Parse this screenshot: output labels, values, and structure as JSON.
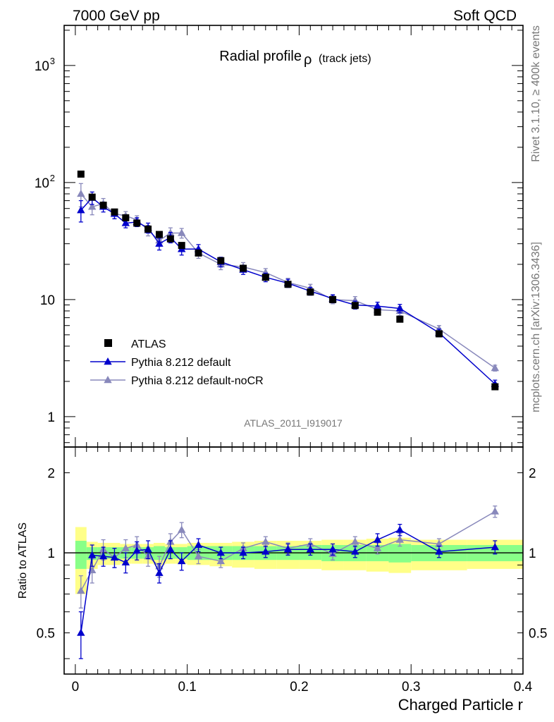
{
  "header": {
    "left": "7000 GeV pp",
    "right": "Soft QCD"
  },
  "side": {
    "rivet": "Rivet 3.1.10, ≥ 400k events",
    "mcplots": "mcplots.cern.ch [arXiv:1306.3436]"
  },
  "chart_data": [
    {
      "type": "scatter",
      "title_main": "Radial profile",
      "title_symbol": "ρ",
      "title_sub": "(track jets)",
      "analysis_label": "ATLAS_2011_I919017",
      "yscale": "log",
      "xlim": [
        -0.01,
        0.4
      ],
      "ylim": [
        0.55,
        2200
      ],
      "x_ticks": [
        "0",
        "0.1",
        "0.2",
        "0.3",
        "0.4"
      ],
      "y_ticks": [
        {
          "value": 1,
          "label": "1"
        },
        {
          "value": 10,
          "label": "10"
        },
        {
          "value": 100,
          "label": "10",
          "sup": "2"
        },
        {
          "value": 1000,
          "label": "10",
          "sup": "3"
        }
      ],
      "legend_position": "bottom-left",
      "colors": {
        "data": "#000000",
        "default": "#0000cc",
        "nocr": "#8888bb"
      },
      "series": [
        {
          "name": "ATLAS",
          "x": [
            0.005,
            0.015,
            0.025,
            0.035,
            0.045,
            0.055,
            0.065,
            0.075,
            0.085,
            0.095,
            0.11,
            0.13,
            0.15,
            0.17,
            0.19,
            0.21,
            0.23,
            0.25,
            0.27,
            0.29,
            0.325,
            0.375
          ],
          "y": [
            118,
            75,
            64,
            56,
            50,
            45,
            40,
            36,
            33,
            29,
            25,
            21.5,
            18.5,
            15.5,
            13.5,
            11.6,
            10.0,
            8.9,
            7.8,
            6.8,
            5.1,
            1.8
          ]
        },
        {
          "name": "Pythia 8.212 default",
          "x": [
            0.005,
            0.015,
            0.025,
            0.035,
            0.045,
            0.055,
            0.065,
            0.075,
            0.085,
            0.095,
            0.11,
            0.13,
            0.15,
            0.17,
            0.19,
            0.21,
            0.23,
            0.25,
            0.27,
            0.29,
            0.325,
            0.375
          ],
          "y": [
            58,
            74,
            62,
            54,
            45,
            46,
            41,
            30,
            34,
            27,
            27,
            21,
            18,
            15.5,
            13.8,
            11.8,
            10.2,
            9.0,
            8.8,
            8.4,
            5.2,
            1.9
          ],
          "err": [
            12,
            9,
            6,
            5,
            4,
            4,
            4,
            3.5,
            3.5,
            3,
            2.5,
            2,
            1.6,
            1.3,
            1.1,
            0.9,
            0.8,
            0.7,
            0.7,
            0.7,
            0.4,
            0.15
          ]
        },
        {
          "name": "Pythia 8.212 default-noCR",
          "x": [
            0.005,
            0.015,
            0.025,
            0.035,
            0.045,
            0.055,
            0.065,
            0.075,
            0.085,
            0.095,
            0.11,
            0.13,
            0.15,
            0.17,
            0.19,
            0.21,
            0.23,
            0.25,
            0.27,
            0.29,
            0.325,
            0.375
          ],
          "y": [
            80,
            62,
            66,
            54,
            52,
            48,
            39,
            32,
            37,
            37,
            25,
            20,
            19,
            17,
            14,
            12.5,
            10.0,
            9.8,
            8.2,
            8.0,
            5.6,
            2.6
          ],
          "err": [
            18,
            9,
            7,
            5,
            4.5,
            4,
            4,
            3.5,
            4,
            3.5,
            2.5,
            2,
            1.7,
            1.4,
            1.2,
            1.0,
            0.8,
            0.8,
            0.7,
            0.7,
            0.4,
            0.15
          ]
        }
      ]
    },
    {
      "type": "scatter",
      "ylabel": "Ratio to ATLAS",
      "xlabel": "Charged Particle r",
      "yscale": "log",
      "xlim": [
        -0.01,
        0.4
      ],
      "ylim": [
        0.35,
        2.5
      ],
      "x_ticks": [
        "0",
        "0.1",
        "0.2",
        "0.3",
        "0.4"
      ],
      "y_ticks": [
        {
          "value": 0.5,
          "label": "0.5"
        },
        {
          "value": 1,
          "label": "1"
        },
        {
          "value": 2,
          "label": "2"
        }
      ],
      "bands": {
        "edges": [
          0,
          0.01,
          0.02,
          0.03,
          0.04,
          0.05,
          0.06,
          0.07,
          0.08,
          0.09,
          0.1,
          0.12,
          0.14,
          0.16,
          0.18,
          0.2,
          0.22,
          0.24,
          0.26,
          0.28,
          0.3,
          0.35,
          0.4
        ],
        "yellow_lo": [
          0.7,
          0.87,
          0.9,
          0.9,
          0.91,
          0.91,
          0.91,
          0.9,
          0.91,
          0.91,
          0.9,
          0.89,
          0.88,
          0.87,
          0.87,
          0.87,
          0.86,
          0.86,
          0.85,
          0.84,
          0.86,
          0.87
        ],
        "yellow_hi": [
          1.25,
          1.1,
          1.09,
          1.09,
          1.08,
          1.08,
          1.08,
          1.09,
          1.08,
          1.08,
          1.09,
          1.09,
          1.1,
          1.11,
          1.11,
          1.11,
          1.12,
          1.12,
          1.13,
          1.14,
          1.12,
          1.12
        ],
        "green_lo": [
          0.87,
          0.94,
          0.95,
          0.95,
          0.95,
          0.95,
          0.95,
          0.94,
          0.95,
          0.95,
          0.94,
          0.94,
          0.94,
          0.94,
          0.94,
          0.94,
          0.93,
          0.93,
          0.93,
          0.92,
          0.93,
          0.93
        ],
        "green_hi": [
          1.11,
          1.05,
          1.05,
          1.05,
          1.05,
          1.05,
          1.05,
          1.06,
          1.05,
          1.05,
          1.06,
          1.06,
          1.06,
          1.06,
          1.06,
          1.07,
          1.07,
          1.07,
          1.07,
          1.08,
          1.07,
          1.07
        ]
      },
      "series": [
        {
          "name": "Pythia 8.212 default",
          "x": [
            0.005,
            0.015,
            0.025,
            0.035,
            0.045,
            0.055,
            0.065,
            0.075,
            0.085,
            0.095,
            0.11,
            0.13,
            0.15,
            0.17,
            0.19,
            0.21,
            0.23,
            0.25,
            0.27,
            0.29,
            0.325,
            0.375
          ],
          "y": [
            0.5,
            0.98,
            0.97,
            0.96,
            0.92,
            1.02,
            1.03,
            0.84,
            1.03,
            0.93,
            1.07,
            1.0,
            1.0,
            1.01,
            1.03,
            1.03,
            1.03,
            1.01,
            1.12,
            1.22,
            1.01,
            1.05
          ],
          "err": [
            0.1,
            0.09,
            0.08,
            0.08,
            0.08,
            0.08,
            0.08,
            0.07,
            0.08,
            0.07,
            0.06,
            0.05,
            0.05,
            0.05,
            0.05,
            0.05,
            0.05,
            0.05,
            0.06,
            0.06,
            0.05,
            0.06
          ]
        },
        {
          "name": "Pythia 8.212 default-noCR",
          "x": [
            0.005,
            0.015,
            0.025,
            0.035,
            0.045,
            0.055,
            0.065,
            0.075,
            0.085,
            0.095,
            0.11,
            0.13,
            0.15,
            0.17,
            0.19,
            0.21,
            0.23,
            0.25,
            0.27,
            0.29,
            0.325,
            0.375
          ],
          "y": [
            0.72,
            0.86,
            1.03,
            0.96,
            1.04,
            1.07,
            0.97,
            0.89,
            1.1,
            1.22,
            0.97,
            0.93,
            1.04,
            1.1,
            1.04,
            1.08,
            0.99,
            1.1,
            1.04,
            1.12,
            1.08,
            1.43
          ],
          "err": [
            0.1,
            0.09,
            0.09,
            0.08,
            0.08,
            0.08,
            0.08,
            0.08,
            0.08,
            0.08,
            0.06,
            0.05,
            0.05,
            0.05,
            0.05,
            0.05,
            0.05,
            0.05,
            0.05,
            0.06,
            0.05,
            0.07
          ]
        }
      ]
    }
  ]
}
